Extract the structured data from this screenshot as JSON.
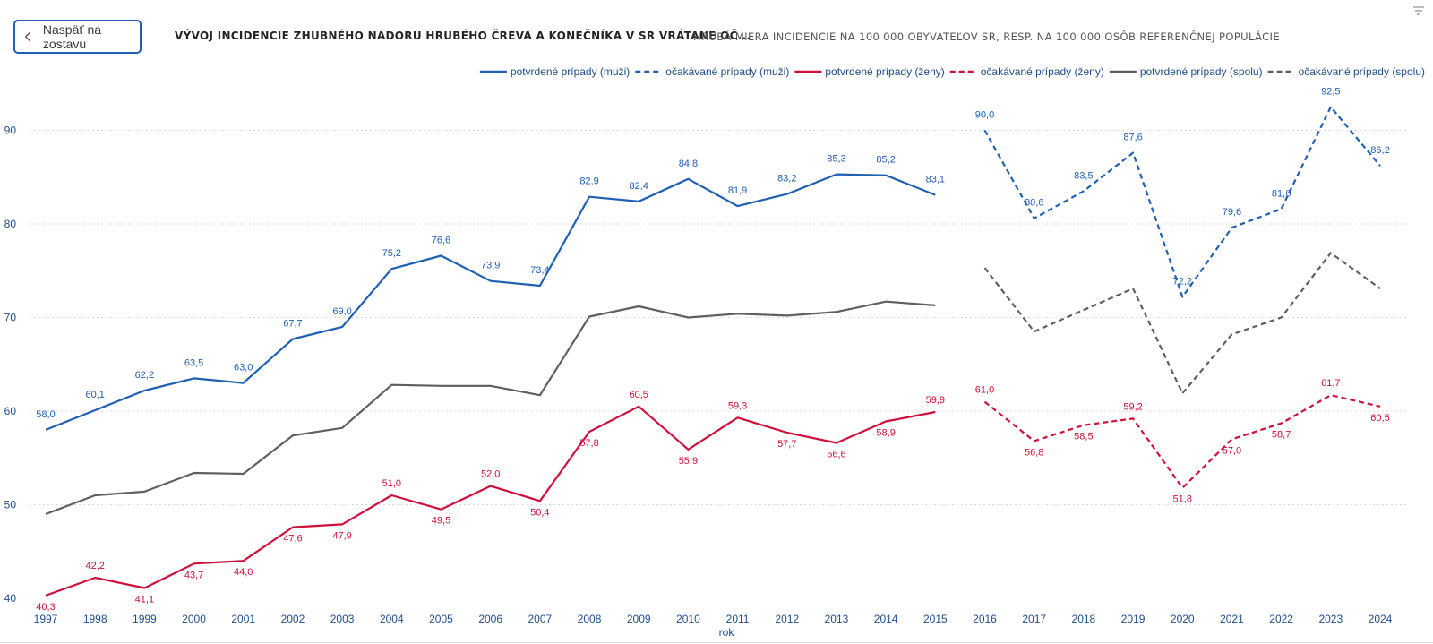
{
  "header": {
    "back_label": "Naspäť na zostavu",
    "title": "VÝVOJ INCIDENCIE ZHUBNÉHO NÁDORU HRUBÉHO ČREVA A KONEČNÍKA V SR VRÁTANE OČ...",
    "subtitle": "HRUBÁ MIERA INCIDENCIE NA 100 000 OBYVATEĽOV SR, RESP. NA 100 000 OSÔB REFERENČNEJ POPULÁCIE"
  },
  "colors": {
    "blue": "#1f5fb4",
    "red": "#d0103a",
    "gray": "#5f5f5f",
    "axis": "#1f4e8c",
    "grid": "#d9d9d9"
  },
  "chart_data": {
    "type": "line",
    "xlabel": "rok",
    "ylabel": "",
    "ylim": [
      40,
      93
    ],
    "yticks": [
      40,
      50,
      60,
      70,
      80,
      90
    ],
    "x": [
      "1997",
      "1998",
      "1999",
      "2000",
      "2001",
      "2002",
      "2003",
      "2004",
      "2005",
      "2006",
      "2007",
      "2008",
      "2009",
      "2010",
      "2011",
      "2012",
      "2013",
      "2014",
      "2015",
      "2016",
      "2017",
      "2018",
      "2019",
      "2020",
      "2021",
      "2022",
      "2023",
      "2024"
    ],
    "series": [
      {
        "name": "potvrdené prípady (muži)",
        "color": "#1f5fb4",
        "dash": false,
        "labels": true,
        "values": [
          58.0,
          60.1,
          62.2,
          63.5,
          63.0,
          67.7,
          69.0,
          75.2,
          76.6,
          73.9,
          73.4,
          82.9,
          82.4,
          84.8,
          81.9,
          83.2,
          85.3,
          85.2,
          83.1,
          null,
          null,
          null,
          null,
          null,
          null,
          null,
          null,
          null
        ]
      },
      {
        "name": "očakávané prípady (muži)",
        "color": "#1f5fb4",
        "dash": true,
        "labels": true,
        "values": [
          null,
          null,
          null,
          null,
          null,
          null,
          null,
          null,
          null,
          null,
          null,
          null,
          null,
          null,
          null,
          null,
          null,
          null,
          null,
          90.0,
          80.6,
          83.5,
          87.6,
          72.2,
          79.6,
          81.6,
          92.5,
          86.2
        ]
      },
      {
        "name": "potvrdené prípady (ženy)",
        "color": "#d0103a",
        "dash": false,
        "labels": true,
        "values": [
          40.3,
          42.2,
          41.1,
          43.7,
          44.0,
          47.6,
          47.9,
          51.0,
          49.5,
          52.0,
          50.4,
          57.8,
          60.5,
          55.9,
          59.3,
          57.7,
          56.6,
          58.9,
          59.9,
          null,
          null,
          null,
          null,
          null,
          null,
          null,
          null,
          null
        ]
      },
      {
        "name": "očakávané prípady (ženy)",
        "color": "#d0103a",
        "dash": true,
        "labels": true,
        "values": [
          null,
          null,
          null,
          null,
          null,
          null,
          null,
          null,
          null,
          null,
          null,
          null,
          null,
          null,
          null,
          null,
          null,
          null,
          null,
          61.0,
          56.8,
          58.5,
          59.2,
          51.8,
          57.0,
          58.7,
          61.7,
          60.5
        ]
      },
      {
        "name": "potvrdené prípady (spolu)",
        "color": "#5f5f5f",
        "dash": false,
        "labels": false,
        "values": [
          49.0,
          51.0,
          51.4,
          53.4,
          53.3,
          57.4,
          58.2,
          62.8,
          62.7,
          62.7,
          61.7,
          70.1,
          71.2,
          70.0,
          70.4,
          70.2,
          70.6,
          71.7,
          71.3,
          null,
          null,
          null,
          null,
          null,
          null,
          null,
          null,
          null
        ]
      },
      {
        "name": "očakávané prípady (spolu)",
        "color": "#5f5f5f",
        "dash": true,
        "labels": false,
        "values": [
          null,
          null,
          null,
          null,
          null,
          null,
          null,
          null,
          null,
          null,
          null,
          null,
          null,
          null,
          null,
          null,
          null,
          null,
          null,
          75.3,
          68.5,
          70.8,
          73.1,
          61.9,
          68.2,
          70.0,
          76.9,
          73.1
        ]
      }
    ],
    "legend_position": "top-right",
    "grid": true
  }
}
